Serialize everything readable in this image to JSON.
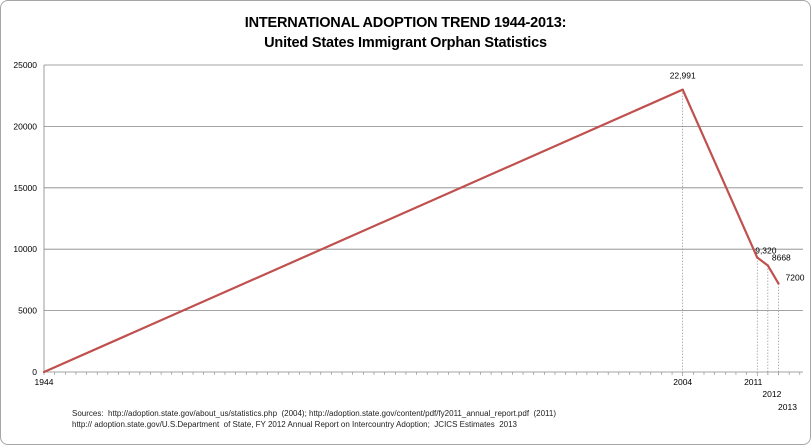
{
  "chart_data": {
    "type": "line",
    "title": "INTERNATIONAL ADOPTION TREND 1944-2013:",
    "subtitle": "United States Immigrant Orphan Statistics",
    "xlabel": "",
    "ylabel": "",
    "ylim": [
      0,
      25000
    ],
    "yticks": [
      "0",
      "5000",
      "10000",
      "15000",
      "20000",
      "25000"
    ],
    "grid": true,
    "legend": "none",
    "line_color": "#c0504d",
    "series": [
      {
        "x": [
          1944,
          2004,
          2011,
          2012,
          2013
        ],
        "values": [
          0,
          22991,
          9320,
          8668,
          7200
        ],
        "labels": [
          "",
          "22,991",
          "9,320",
          "8668",
          "7200"
        ]
      }
    ],
    "xtick_labels": [
      {
        "x": 1944,
        "label": "1944"
      },
      {
        "x": 2004,
        "label": "2004"
      },
      {
        "x": 2011,
        "label": "2011"
      },
      {
        "x": 2012,
        "label": "2012"
      },
      {
        "x": 2013,
        "label": "2013"
      }
    ]
  },
  "sources": {
    "line1": "Sources:  http://adoption.state.gov/about_us/statistics.php  (2004); http://adoption.state.gov/content/pdf/fy2011_annual_report.pdf  (2011)",
    "line2": "http:// adoption.state.gov/U.S.Department  of State, FY 2012 Annual Report on Intercountry Adoption;  JCICS Estimates  2013"
  }
}
